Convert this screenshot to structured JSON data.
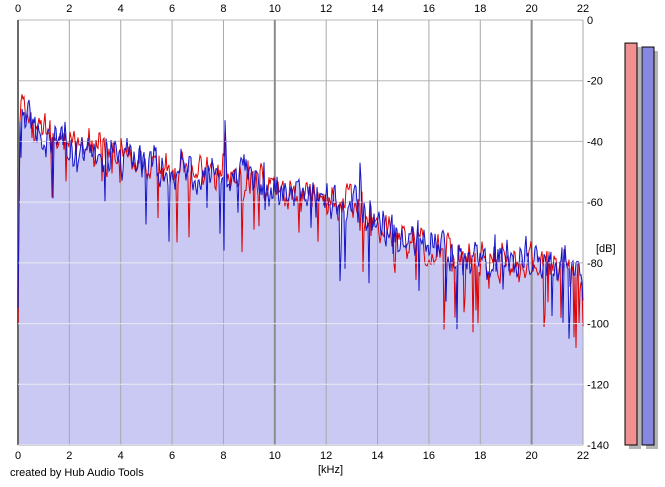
{
  "meta": {
    "credit": "created by Hub Audio Tools"
  },
  "colors": {
    "background": "#ffffff",
    "red_trace": "#e00000",
    "blue_trace": "#1414c8",
    "spectrum_fill": "#c9c9f3",
    "h_gridline": "#b8b8b8",
    "h_gridline_in_fill": "#eaeaf2",
    "v_gridline_minor": "#a8a8a8",
    "v_gridline_major": "#8c8c8c",
    "axis_line": "#6a6a6a",
    "bar_shadow": "#b4b4b4",
    "red_bar_fill": "#f09090",
    "blue_bar_fill": "#8888e0",
    "bar_border": "#000000",
    "text": "#000000"
  },
  "axes": {
    "x": {
      "unit_label": "[kHz]",
      "min": 0,
      "max": 22,
      "tick_labels": [
        "0",
        "2",
        "4",
        "6",
        "8",
        "10",
        "12",
        "14",
        "16",
        "18",
        "20",
        "22"
      ],
      "tick_values": [
        0,
        2,
        4,
        6,
        8,
        10,
        12,
        14,
        16,
        18,
        20,
        22
      ],
      "major_tick_values": [
        10,
        20
      ]
    },
    "y": {
      "unit_label": "[dB]",
      "min": -140,
      "max": 0,
      "tick_labels": [
        "0",
        "-20",
        "-40",
        "-60",
        "-80",
        "-100",
        "-120",
        "-140"
      ],
      "tick_values": [
        0,
        -20,
        -40,
        -60,
        -80,
        -100,
        -120,
        -140
      ]
    }
  },
  "level_meters": {
    "red_bar_db": -7.6,
    "blue_bar_db": -8.9,
    "bottom_db": -140
  },
  "chart_data": {
    "type": "line",
    "title": "",
    "xlabel": "[kHz]",
    "ylabel": "[dB]",
    "xlim": [
      0,
      22
    ],
    "ylim": [
      -140,
      0
    ],
    "grid": true,
    "legend": "none",
    "description": "Audio frequency spectrum, two overlaid noisy traces (left/right channel), area under blue trace filled lavender, declining from about -30 dB near 0 kHz to about -80 dB near 22 kHz",
    "series": [
      {
        "name": "red-spectrum",
        "color": "#e00000",
        "trend_points_khz_db": [
          [
            0,
            -100
          ],
          [
            0.08,
            -28
          ],
          [
            0.12,
            -25
          ],
          [
            0.25,
            -31
          ],
          [
            0.5,
            -35.5
          ],
          [
            0.8,
            -37.5
          ],
          [
            1,
            -38.5
          ],
          [
            1.5,
            -40.5
          ],
          [
            2,
            -42
          ],
          [
            2.5,
            -43
          ],
          [
            3,
            -44.5
          ],
          [
            4,
            -46.5
          ],
          [
            5,
            -48
          ],
          [
            6,
            -50
          ],
          [
            7,
            -51.5
          ],
          [
            7.9,
            -52
          ],
          [
            8.3,
            -52.5
          ],
          [
            9,
            -54
          ],
          [
            10,
            -56.5
          ],
          [
            11,
            -58.5
          ],
          [
            12,
            -60.5
          ],
          [
            13,
            -62.5
          ],
          [
            13.5,
            -65.5
          ],
          [
            14,
            -68.5
          ],
          [
            15,
            -72
          ],
          [
            16,
            -75.5
          ],
          [
            17,
            -79
          ],
          [
            18,
            -80.5
          ],
          [
            19,
            -81
          ],
          [
            20,
            -81
          ],
          [
            21,
            -81.5
          ],
          [
            21.6,
            -82.5
          ],
          [
            22,
            -88
          ]
        ]
      },
      {
        "name": "blue-spectrum",
        "color": "#1414c8",
        "fill": "#c9c9f3",
        "trend_points_khz_db": [
          [
            0,
            -95
          ],
          [
            0.08,
            -30
          ],
          [
            0.12,
            -26
          ],
          [
            0.25,
            -32
          ],
          [
            0.5,
            -36
          ],
          [
            0.8,
            -38
          ],
          [
            1,
            -39
          ],
          [
            1.5,
            -41
          ],
          [
            2,
            -42
          ],
          [
            2.5,
            -43.5
          ],
          [
            3,
            -44.5
          ],
          [
            4,
            -46.5
          ],
          [
            5,
            -48
          ],
          [
            6,
            -50
          ],
          [
            7,
            -51.5
          ],
          [
            7.9,
            -51.5
          ],
          [
            8.3,
            -52
          ],
          [
            9,
            -53.5
          ],
          [
            10,
            -56
          ],
          [
            11,
            -58
          ],
          [
            12,
            -60
          ],
          [
            13,
            -62
          ],
          [
            13.5,
            -65
          ],
          [
            14,
            -68
          ],
          [
            15,
            -71.5
          ],
          [
            16,
            -75
          ],
          [
            17,
            -78.5
          ],
          [
            18,
            -80
          ],
          [
            19,
            -80.5
          ],
          [
            20,
            -80.5
          ],
          [
            21,
            -81
          ],
          [
            21.6,
            -82
          ],
          [
            22,
            -87
          ]
        ]
      }
    ],
    "noise": {
      "jitter_db": 15,
      "dip_probability_red": 0.055,
      "dip_probability_blue": 0.04,
      "seed_red": 7,
      "seed_blue": 99
    },
    "spikes": [
      {
        "series": "blue",
        "khz": 8.05,
        "db": -33
      },
      {
        "series": "red",
        "khz": 8.05,
        "db": -36
      },
      {
        "series": "blue",
        "khz": 13.3,
        "db": -47
      },
      {
        "series": "blue",
        "khz": 12.55,
        "db": -86
      },
      {
        "series": "red",
        "khz": 16.6,
        "db": -102
      },
      {
        "series": "red",
        "khz": 17.0,
        "db": -98
      },
      {
        "series": "blue",
        "khz": 21.45,
        "db": -105
      },
      {
        "series": "red",
        "khz": 21.85,
        "db": -100
      }
    ]
  }
}
